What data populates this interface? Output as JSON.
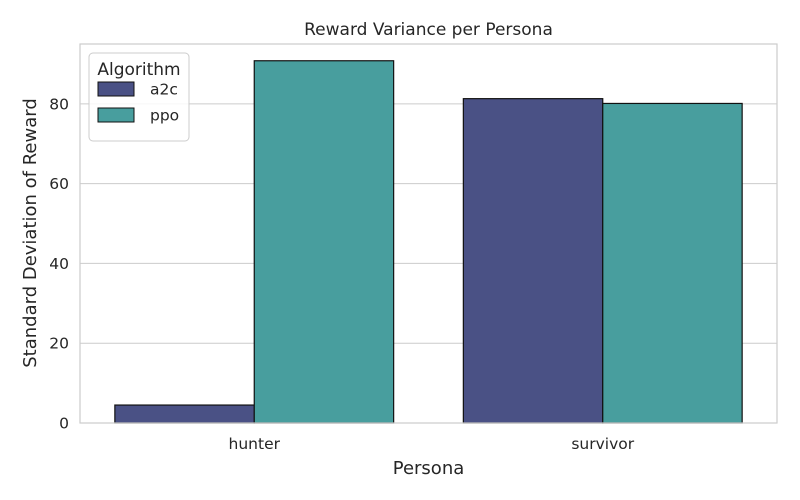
{
  "chart_data": {
    "type": "bar",
    "title": "Reward Variance per Persona",
    "xlabel": "Persona",
    "ylabel": "Standard Deviation of Reward",
    "categories": [
      "hunter",
      "survivor"
    ],
    "series": [
      {
        "name": "a2c",
        "values": [
          4.5,
          81.3
        ],
        "color": "#4a5185"
      },
      {
        "name": "ppo",
        "values": [
          90.8,
          80.1
        ],
        "color": "#489e9e"
      }
    ],
    "ylim": [
      0,
      95
    ],
    "yticks": [
      0,
      20,
      40,
      60,
      80
    ],
    "ytick_labels": [
      "0",
      "20",
      "40",
      "60",
      "80"
    ],
    "grid": true,
    "legend": {
      "title": "Algorithm",
      "placement": "top-left"
    }
  }
}
